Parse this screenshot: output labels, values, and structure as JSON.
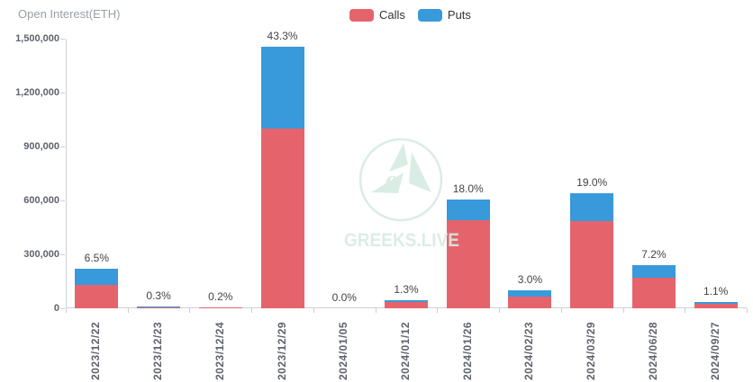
{
  "header": {
    "title": "Open Interest(ETH)"
  },
  "legend": {
    "items": [
      {
        "label": "Calls",
        "color": "#e5646c"
      },
      {
        "label": "Puts",
        "color": "#3899db"
      }
    ]
  },
  "watermark": {
    "text": "GREEKS.LIVE",
    "color": "#d7ece3"
  },
  "chart_data": {
    "type": "bar",
    "stacked": true,
    "title": "Open Interest(ETH)",
    "xlabel": "",
    "ylabel": "Open Interest (ETH)",
    "legend_position": "top",
    "grid": false,
    "ylim": [
      0,
      1500000
    ],
    "y_tick_values": [
      0,
      300000,
      600000,
      900000,
      1200000,
      1500000
    ],
    "y_tick_labels": [
      "0",
      "300,000",
      "600,000",
      "900,000",
      "1,200,000",
      "1,500,000"
    ],
    "categories": [
      "2023/12/22",
      "2023/12/23",
      "2023/12/24",
      "2023/12/29",
      "2024/01/05",
      "2024/01/12",
      "2024/01/26",
      "2024/02/23",
      "2024/03/29",
      "2024/06/28",
      "2024/09/27"
    ],
    "series": [
      {
        "name": "Calls",
        "color": "#e5646c",
        "values": [
          130000,
          6500,
          5500,
          1000000,
          400,
          35000,
          490000,
          65000,
          485000,
          170000,
          25000
        ]
      },
      {
        "name": "Puts",
        "color": "#3899db",
        "values": [
          88000,
          3700,
          1500,
          455000,
          200,
          9000,
          115000,
          36000,
          153000,
          72000,
          12000
        ]
      }
    ],
    "bar_total_labels": [
      "6.5%",
      "0.3%",
      "0.2%",
      "43.3%",
      "0.0%",
      "1.3%",
      "18.0%",
      "3.0%",
      "19.0%",
      "7.2%",
      "1.1%"
    ]
  }
}
